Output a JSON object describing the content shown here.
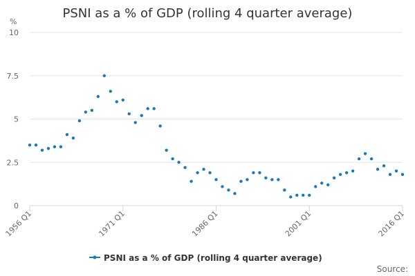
{
  "chart_data": {
    "type": "scatter",
    "title": "PSNI as a % of GDP (rolling 4 quarter average)",
    "y_unit": "%",
    "ylim": [
      0,
      10
    ],
    "yticks": [
      0,
      2.5,
      5,
      7.5,
      10
    ],
    "ytick_labels": [
      "0",
      "2.5",
      "5",
      "7.5",
      "10"
    ],
    "xlim": [
      1956,
      2016
    ],
    "xticks": [
      1956,
      1971,
      1986,
      2001,
      2016
    ],
    "xtick_labels": [
      "1956 Q1",
      "1971 Q1",
      "1986 Q1",
      "2001 Q1",
      "2016 Q1"
    ],
    "grid": true,
    "legend_position": "bottom-center",
    "series": [
      {
        "name": "PSNI as a % of GDP (rolling 4 quarter average)",
        "color": "#1a7ab5",
        "x": [
          1956,
          1957,
          1958,
          1959,
          1960,
          1961,
          1962,
          1963,
          1964,
          1965,
          1966,
          1967,
          1968,
          1969,
          1970,
          1971,
          1972,
          1973,
          1974,
          1975,
          1976,
          1977,
          1978,
          1979,
          1980,
          1981,
          1982,
          1983,
          1984,
          1985,
          1986,
          1987,
          1988,
          1989,
          1990,
          1991,
          1992,
          1993,
          1994,
          1995,
          1996,
          1997,
          1998,
          1999,
          2000,
          2001,
          2002,
          2003,
          2004,
          2005,
          2006,
          2007,
          2008,
          2009,
          2010,
          2011,
          2012,
          2013,
          2014,
          2015,
          2016
        ],
        "y": [
          3.5,
          3.5,
          3.2,
          3.3,
          3.4,
          3.4,
          4.1,
          3.9,
          4.9,
          5.4,
          5.5,
          6.3,
          7.5,
          6.6,
          6.0,
          6.1,
          5.3,
          4.8,
          5.2,
          5.6,
          5.6,
          4.6,
          3.2,
          2.7,
          2.5,
          2.2,
          1.4,
          1.9,
          2.1,
          1.9,
          1.5,
          1.1,
          0.9,
          0.7,
          1.4,
          1.5,
          1.9,
          1.9,
          1.6,
          1.5,
          1.5,
          0.9,
          0.5,
          0.6,
          0.6,
          0.6,
          1.1,
          1.3,
          1.2,
          1.6,
          1.8,
          1.9,
          2.0,
          2.7,
          3.0,
          2.7,
          2.1,
          2.3,
          1.8,
          2.0,
          1.8
        ]
      }
    ]
  },
  "source_label": "Source:"
}
